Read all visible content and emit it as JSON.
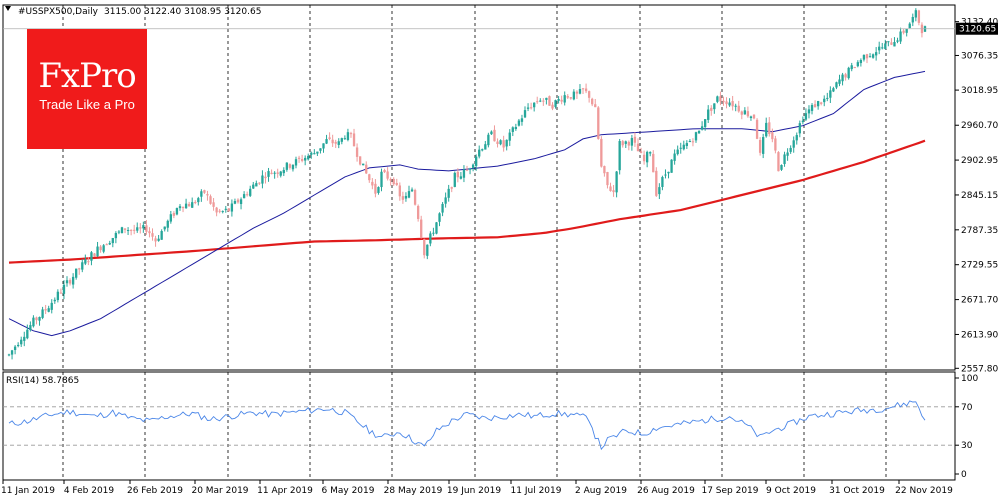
{
  "header": {
    "symbol": "#USSPX500,Daily",
    "ohlc": "3115.00 3122.40 3108.95 3120.65"
  },
  "logo": {
    "main": "FxPro",
    "tagline": "Trade Like a Pro",
    "color": "#f01b1b"
  },
  "colors": {
    "bull": "#26a69a",
    "bear": "#ef9a9a",
    "ma_fast": "#1b1b9e",
    "ma_slow": "#e01b1b",
    "rsi": "#4a86e8",
    "grid": "#000000"
  },
  "chart_data": [
    {
      "type": "candlestick",
      "title": "#USSPX500,Daily",
      "last_price_label": "3120.65",
      "y_ticks": [
        "3132.40",
        "3076.35",
        "3018.95",
        "2960.70",
        "2902.95",
        "2845.15",
        "2787.35",
        "2729.55",
        "2671.70",
        "2613.90",
        "2557.80"
      ],
      "y_tick_values": [
        3132.4,
        3076.35,
        3018.95,
        2960.7,
        2902.95,
        2845.15,
        2787.35,
        2729.55,
        2671.7,
        2613.9,
        2557.8
      ],
      "ylim": [
        2555,
        3160
      ],
      "x_ticks": [
        "11 Jan 2019",
        "4 Feb 2019",
        "26 Feb 2019",
        "20 Mar 2019",
        "11 Apr 2019",
        "6 May 2019",
        "28 May 2019",
        "19 Jun 2019",
        "11 Jul 2019",
        "2 Aug 2019",
        "26 Aug 2019",
        "17 Sep 2019",
        "9 Oct 2019",
        "31 Oct 2019",
        "22 Nov 2019"
      ],
      "price_anchors": [
        [
          0,
          2580
        ],
        [
          4,
          2610
        ],
        [
          8,
          2635
        ],
        [
          12,
          2655
        ],
        [
          16,
          2680
        ],
        [
          20,
          2705
        ],
        [
          26,
          2740
        ],
        [
          30,
          2760
        ],
        [
          34,
          2775
        ],
        [
          38,
          2790
        ],
        [
          42,
          2785
        ],
        [
          45,
          2790
        ],
        [
          48,
          2770
        ],
        [
          52,
          2800
        ],
        [
          56,
          2830
        ],
        [
          60,
          2830
        ],
        [
          64,
          2850
        ],
        [
          68,
          2815
        ],
        [
          72,
          2820
        ],
        [
          76,
          2840
        ],
        [
          80,
          2860
        ],
        [
          84,
          2880
        ],
        [
          88,
          2885
        ],
        [
          92,
          2895
        ],
        [
          96,
          2905
        ],
        [
          100,
          2915
        ],
        [
          104,
          2935
        ],
        [
          108,
          2930
        ],
        [
          110,
          2945
        ],
        [
          112,
          2940
        ],
        [
          116,
          2890
        ],
        [
          120,
          2850
        ],
        [
          122,
          2880
        ],
        [
          126,
          2870
        ],
        [
          128,
          2840
        ],
        [
          130,
          2840
        ],
        [
          132,
          2855
        ],
        [
          134,
          2810
        ],
        [
          136,
          2750
        ],
        [
          140,
          2800
        ],
        [
          142,
          2825
        ],
        [
          146,
          2875
        ],
        [
          150,
          2885
        ],
        [
          154,
          2920
        ],
        [
          158,
          2945
        ],
        [
          162,
          2925
        ],
        [
          166,
          2960
        ],
        [
          170,
          2990
        ],
        [
          174,
          3005
        ],
        [
          178,
          2995
        ],
        [
          182,
          3010
        ],
        [
          186,
          3010
        ],
        [
          188,
          3018
        ],
        [
          190,
          3010
        ],
        [
          192,
          2985
        ],
        [
          194,
          2890
        ],
        [
          196,
          2860
        ],
        [
          198,
          2850
        ],
        [
          200,
          2930
        ],
        [
          204,
          2935
        ],
        [
          208,
          2900
        ],
        [
          210,
          2920
        ],
        [
          212,
          2850
        ],
        [
          214,
          2870
        ],
        [
          218,
          2910
        ],
        [
          222,
          2930
        ],
        [
          226,
          2950
        ],
        [
          228,
          2975
        ],
        [
          232,
          3005
        ],
        [
          236,
          3000
        ],
        [
          240,
          2985
        ],
        [
          244,
          2975
        ],
        [
          246,
          2910
        ],
        [
          248,
          2960
        ],
        [
          250,
          2940
        ],
        [
          252,
          2890
        ],
        [
          254,
          2910
        ],
        [
          258,
          2950
        ],
        [
          260,
          2975
        ],
        [
          264,
          2995
        ],
        [
          268,
          3005
        ],
        [
          272,
          3035
        ],
        [
          276,
          3055
        ],
        [
          280,
          3075
        ],
        [
          284,
          3085
        ],
        [
          288,
          3095
        ],
        [
          292,
          3110
        ],
        [
          295,
          3130
        ],
        [
          297,
          3145
        ],
        [
          299,
          3120
        ],
        [
          300,
          3120.65
        ]
      ],
      "ma_fast_anchors": [
        [
          0,
          2640
        ],
        [
          8,
          2620
        ],
        [
          14,
          2612
        ],
        [
          20,
          2620
        ],
        [
          30,
          2640
        ],
        [
          40,
          2670
        ],
        [
          50,
          2700
        ],
        [
          60,
          2730
        ],
        [
          70,
          2760
        ],
        [
          80,
          2790
        ],
        [
          90,
          2815
        ],
        [
          100,
          2845
        ],
        [
          110,
          2875
        ],
        [
          118,
          2890
        ],
        [
          128,
          2895
        ],
        [
          134,
          2888
        ],
        [
          144,
          2885
        ],
        [
          160,
          2893
        ],
        [
          172,
          2905
        ],
        [
          182,
          2920
        ],
        [
          188,
          2938
        ],
        [
          194,
          2945
        ],
        [
          210,
          2950
        ],
        [
          225,
          2955
        ],
        [
          240,
          2955
        ],
        [
          250,
          2950
        ],
        [
          260,
          2960
        ],
        [
          270,
          2980
        ],
        [
          280,
          3020
        ],
        [
          290,
          3040
        ],
        [
          300,
          3050
        ]
      ],
      "ma_slow_anchors": [
        [
          0,
          2733
        ],
        [
          20,
          2738
        ],
        [
          40,
          2745
        ],
        [
          60,
          2752
        ],
        [
          80,
          2760
        ],
        [
          100,
          2768
        ],
        [
          120,
          2770
        ],
        [
          140,
          2773
        ],
        [
          160,
          2775
        ],
        [
          175,
          2782
        ],
        [
          185,
          2790
        ],
        [
          200,
          2805
        ],
        [
          220,
          2820
        ],
        [
          240,
          2845
        ],
        [
          260,
          2870
        ],
        [
          280,
          2900
        ],
        [
          300,
          2935
        ]
      ]
    },
    {
      "type": "line",
      "title": "RSI(14) 58.7865",
      "y_ticks": [
        "100",
        "70",
        "30",
        "0"
      ],
      "y_tick_values": [
        100,
        70,
        30,
        0
      ],
      "ylim": [
        0,
        100
      ],
      "levels": [
        70,
        30
      ],
      "rsi_anchors": [
        [
          0,
          52
        ],
        [
          6,
          55
        ],
        [
          14,
          62
        ],
        [
          20,
          65
        ],
        [
          28,
          60
        ],
        [
          34,
          64
        ],
        [
          40,
          58
        ],
        [
          46,
          55
        ],
        [
          52,
          60
        ],
        [
          60,
          63
        ],
        [
          66,
          57
        ],
        [
          72,
          60
        ],
        [
          80,
          64
        ],
        [
          86,
          62
        ],
        [
          92,
          64
        ],
        [
          98,
          66
        ],
        [
          104,
          68
        ],
        [
          110,
          64
        ],
        [
          114,
          55
        ],
        [
          118,
          45
        ],
        [
          122,
          38
        ],
        [
          128,
          44
        ],
        [
          132,
          36
        ],
        [
          136,
          28
        ],
        [
          140,
          45
        ],
        [
          146,
          57
        ],
        [
          150,
          62
        ],
        [
          156,
          58
        ],
        [
          162,
          60
        ],
        [
          168,
          62
        ],
        [
          172,
          60
        ],
        [
          178,
          63
        ],
        [
          184,
          62
        ],
        [
          190,
          58
        ],
        [
          192,
          40
        ],
        [
          194,
          28
        ],
        [
          196,
          35
        ],
        [
          202,
          45
        ],
        [
          208,
          42
        ],
        [
          212,
          48
        ],
        [
          220,
          52
        ],
        [
          228,
          56
        ],
        [
          236,
          60
        ],
        [
          242,
          50
        ],
        [
          246,
          38
        ],
        [
          250,
          45
        ],
        [
          256,
          52
        ],
        [
          262,
          60
        ],
        [
          270,
          63
        ],
        [
          278,
          66
        ],
        [
          286,
          68
        ],
        [
          292,
          72
        ],
        [
          297,
          76
        ],
        [
          299,
          62
        ],
        [
          300,
          58.79
        ]
      ]
    }
  ]
}
